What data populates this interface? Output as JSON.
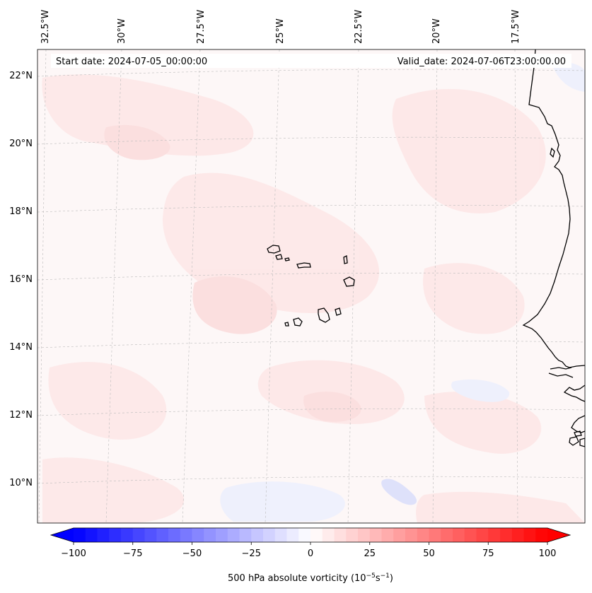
{
  "header": {
    "start_date": "Start date: 2024-07-05_00:00:00",
    "valid_date": "Valid_date: 2024-07-06T23:00:00.00"
  },
  "lon_labels": [
    "32.5°W",
    "30°W",
    "27.5°W",
    "25°W",
    "22.5°W",
    "20°W",
    "17.5°W"
  ],
  "lat_labels": [
    "22°N",
    "20°N",
    "18°N",
    "16°N",
    "14°N",
    "12°N",
    "10°N"
  ],
  "colorbar": {
    "ticks": [
      "−100",
      "−75",
      "−50",
      "−25",
      "0",
      "25",
      "50",
      "75",
      "100"
    ],
    "label": "500 hPa absolute vorticity (10",
    "label_exp1": "−5",
    "label_mid": "s",
    "label_exp2": "−1",
    "label_close": ")",
    "min": -100,
    "max": 100,
    "levels": 41,
    "neg_color": "#0000ff",
    "zero_color": "#ffffff",
    "pos_color": "#ff0000"
  },
  "map": {
    "background_color": "#fdf7f7",
    "coastline_color": "#000000"
  }
}
